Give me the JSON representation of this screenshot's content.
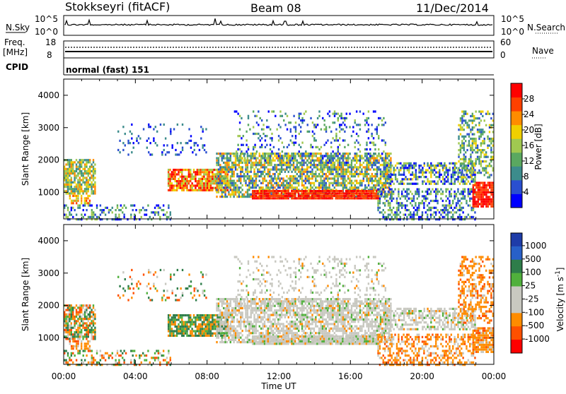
{
  "header": {
    "title": "Stokkseyri (fitACF)",
    "beam": "Beam 08",
    "date": "11/Dec/2014"
  },
  "strip_panel": {
    "nsky_label": "N.Sky",
    "nsky_axis": [
      "10^5",
      "10^0"
    ],
    "nsearch_label": "N.Search",
    "freq_label": "Freq.",
    "freq_unit": "[MHz]",
    "freq_axis": [
      "18",
      "8"
    ],
    "nave_axis": [
      "60",
      "0"
    ],
    "nave_label": "Nave",
    "cpid_label": "CPID",
    "cpid_value": "normal (fast) 151"
  },
  "colors": {
    "power": [
      "#0000ff",
      "#2a4fd0",
      "#3c8c8c",
      "#5aa860",
      "#a0c850",
      "#f0d000",
      "#ff8c00",
      "#ff4000",
      "#ff0000"
    ],
    "velocity": [
      "#1e3ca8",
      "#2860c8",
      "#2e7d4a",
      "#50b03c",
      "#c8c8c0",
      "#c8c8c0",
      "#ff8c00",
      "#ff5000",
      "#ff0000"
    ]
  },
  "chart_data": [
    {
      "type": "heatmap",
      "name": "power",
      "xlabel": "",
      "ylabel": "Slant Range [km]",
      "x_ticks": [
        "00:00",
        "04:00",
        "08:00",
        "12:00",
        "16:00",
        "20:00",
        "00:00"
      ],
      "y_ticks": [
        "1000",
        "2000",
        "3000",
        "4000"
      ],
      "ylim": [
        180,
        4500
      ],
      "colorbar_label": "Power [dB]",
      "colorbar_ticks": [
        "28",
        "24",
        "20",
        "16",
        "12",
        "8",
        "4"
      ],
      "colorbar_range": [
        0,
        32
      ]
    },
    {
      "type": "heatmap",
      "name": "velocity",
      "xlabel": "Time UT",
      "ylabel": "Slant Range [km]",
      "x_ticks": [
        "00:00",
        "04:00",
        "08:00",
        "12:00",
        "16:00",
        "20:00",
        "00:00"
      ],
      "y_ticks": [
        "1000",
        "2000",
        "3000",
        "4000"
      ],
      "ylim": [
        180,
        4500
      ],
      "colorbar_label": "Velocity [m s",
      "colorbar_label_sup": "-1",
      "colorbar_label_end": "]",
      "colorbar_ticks": [
        "1000",
        "500",
        "100",
        "25",
        "-25",
        "-100",
        "-500",
        "-1000"
      ]
    }
  ]
}
